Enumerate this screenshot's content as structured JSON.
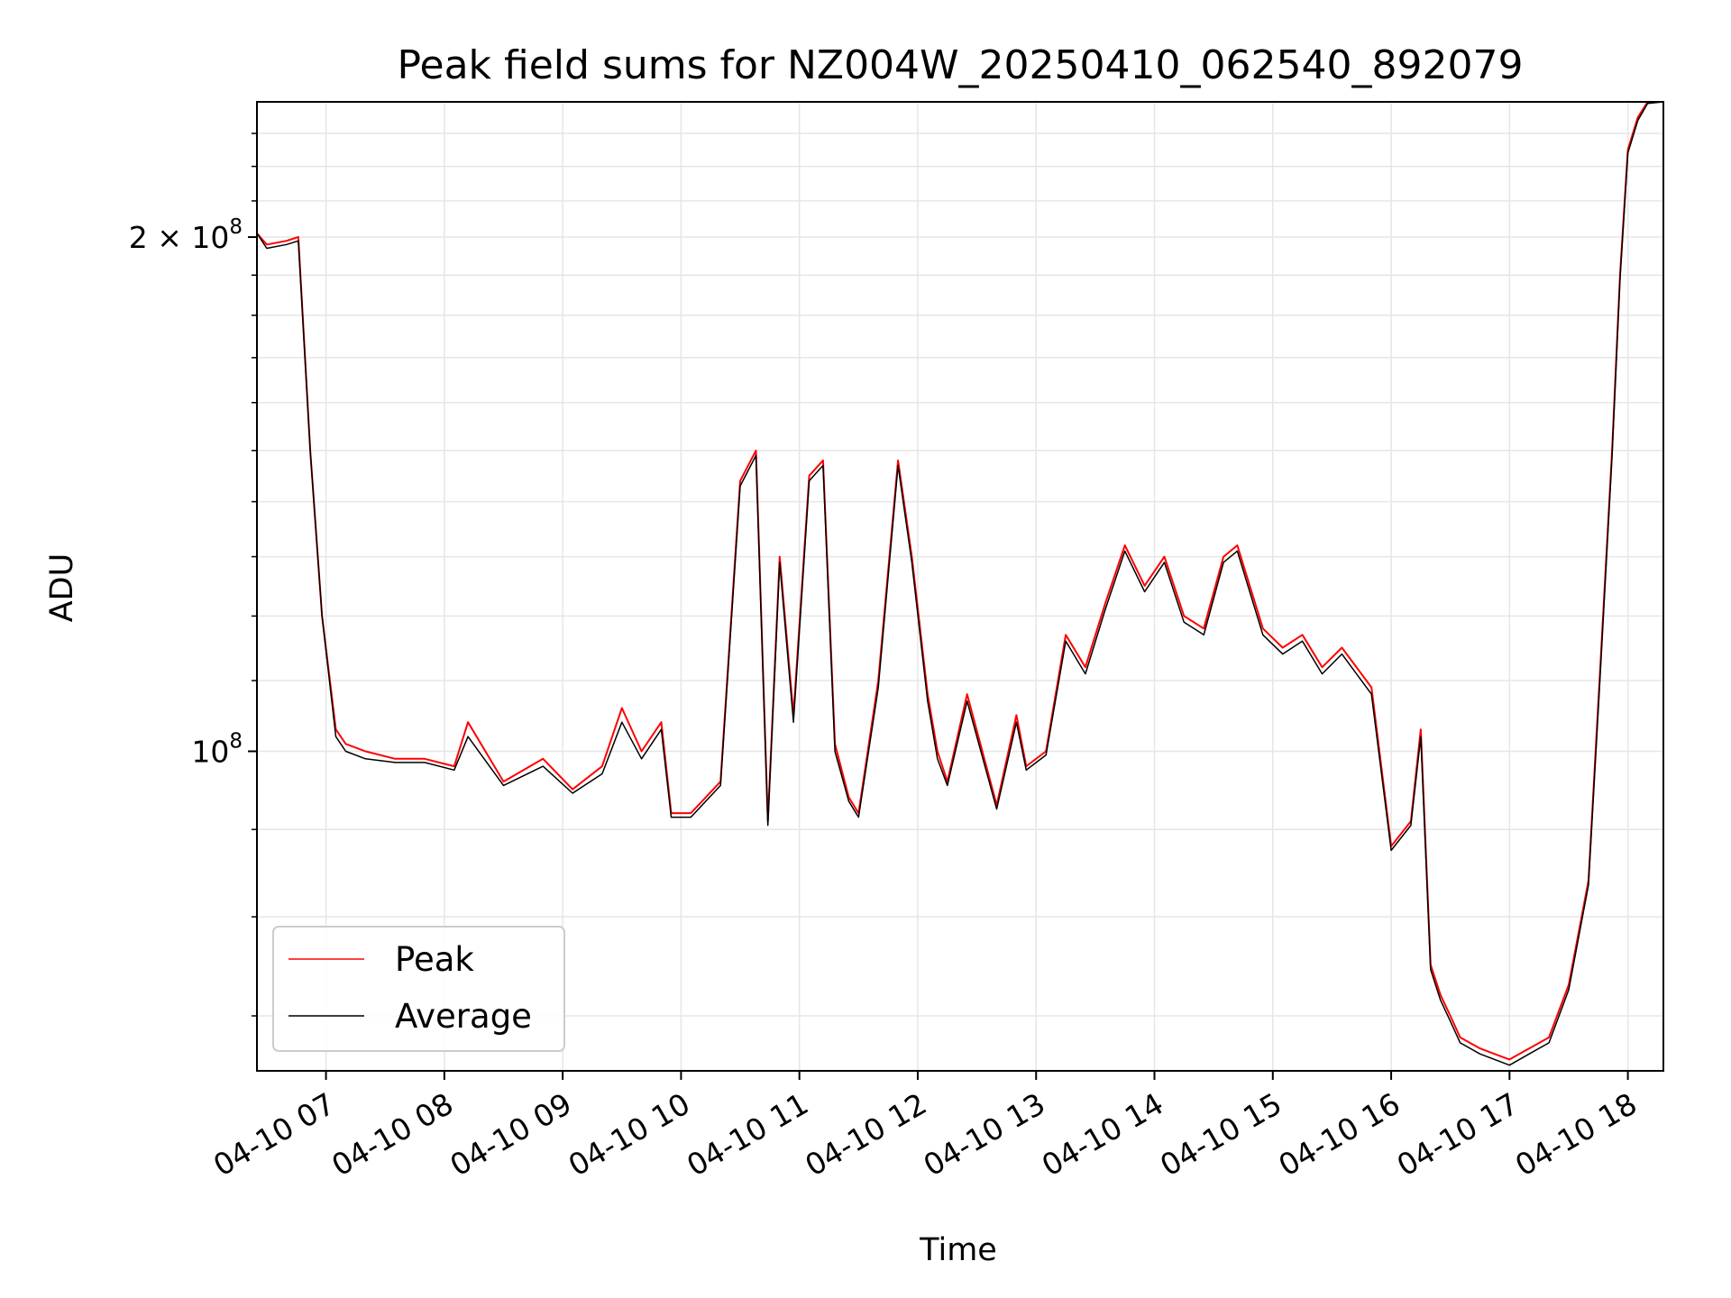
{
  "chart_data": {
    "type": "line",
    "title": "Peak field sums for NZ004W_20250410_062540_892079",
    "xlabel": "Time",
    "ylabel": "ADU",
    "y_scale": "log",
    "ylim": [
      65000000,
      240000000
    ],
    "xlim": [
      "2025-04-10 06:25",
      "2025-04-10 18:18"
    ],
    "grid": true,
    "legend": {
      "location": "lower-left"
    },
    "x_ticks": [
      "04-10 07",
      "04-10 08",
      "04-10 09",
      "04-10 10",
      "04-10 11",
      "04-10 12",
      "04-10 13",
      "04-10 14",
      "04-10 15",
      "04-10 16",
      "04-10 17",
      "04-10 18"
    ],
    "y_ticks_major": [
      {
        "value": 100000000,
        "base": "10",
        "exponent": "8"
      },
      {
        "value": 200000000,
        "mantissa": "2",
        "times": "×",
        "base": "10",
        "exponent": "8"
      }
    ],
    "x": [
      "2025-04-10 06:25",
      "2025-04-10 06:30",
      "2025-04-10 06:40",
      "2025-04-10 06:46",
      "2025-04-10 06:52",
      "2025-04-10 06:58",
      "2025-04-10 07:05",
      "2025-04-10 07:10",
      "2025-04-10 07:20",
      "2025-04-10 07:35",
      "2025-04-10 07:50",
      "2025-04-10 08:05",
      "2025-04-10 08:12",
      "2025-04-10 08:30",
      "2025-04-10 08:50",
      "2025-04-10 09:05",
      "2025-04-10 09:20",
      "2025-04-10 09:30",
      "2025-04-10 09:40",
      "2025-04-10 09:50",
      "2025-04-10 09:55",
      "2025-04-10 10:05",
      "2025-04-10 10:20",
      "2025-04-10 10:30",
      "2025-04-10 10:38",
      "2025-04-10 10:44",
      "2025-04-10 10:50",
      "2025-04-10 10:57",
      "2025-04-10 11:05",
      "2025-04-10 11:12",
      "2025-04-10 11:18",
      "2025-04-10 11:25",
      "2025-04-10 11:30",
      "2025-04-10 11:40",
      "2025-04-10 11:50",
      "2025-04-10 11:57",
      "2025-04-10 12:05",
      "2025-04-10 12:10",
      "2025-04-10 12:15",
      "2025-04-10 12:25",
      "2025-04-10 12:40",
      "2025-04-10 12:50",
      "2025-04-10 12:55",
      "2025-04-10 13:05",
      "2025-04-10 13:15",
      "2025-04-10 13:25",
      "2025-04-10 13:35",
      "2025-04-10 13:45",
      "2025-04-10 13:55",
      "2025-04-10 14:05",
      "2025-04-10 14:15",
      "2025-04-10 14:25",
      "2025-04-10 14:35",
      "2025-04-10 14:42",
      "2025-04-10 14:55",
      "2025-04-10 15:05",
      "2025-04-10 15:15",
      "2025-04-10 15:25",
      "2025-04-10 15:35",
      "2025-04-10 15:50",
      "2025-04-10 16:00",
      "2025-04-10 16:10",
      "2025-04-10 16:15",
      "2025-04-10 16:20",
      "2025-04-10 16:25",
      "2025-04-10 16:30",
      "2025-04-10 16:35",
      "2025-04-10 16:45",
      "2025-04-10 17:00",
      "2025-04-10 17:10",
      "2025-04-10 17:20",
      "2025-04-10 17:30",
      "2025-04-10 17:40",
      "2025-04-10 17:46",
      "2025-04-10 17:52",
      "2025-04-10 17:56",
      "2025-04-10 18:00",
      "2025-04-10 18:05",
      "2025-04-10 18:10",
      "2025-04-10 18:18"
    ],
    "series": [
      {
        "name": "Peak",
        "color": "#ff0000",
        "values": [
          201000000,
          198000000,
          199000000,
          200000000,
          150000000,
          120000000,
          103000000,
          101000000,
          100000000,
          99000000,
          99000000,
          98000000,
          104000000,
          96000000,
          99000000,
          95000000,
          98000000,
          106000000,
          100000000,
          104000000,
          92000000,
          92000000,
          96000000,
          144000000,
          150000000,
          91000000,
          130000000,
          105000000,
          145000000,
          148000000,
          101000000,
          94000000,
          92000000,
          110000000,
          148000000,
          130000000,
          108000000,
          100000000,
          96000000,
          108000000,
          93000000,
          105000000,
          98000000,
          100000000,
          117000000,
          112000000,
          122000000,
          132000000,
          125000000,
          130000000,
          120000000,
          118000000,
          130000000,
          132000000,
          118000000,
          115000000,
          117000000,
          112000000,
          115000000,
          109000000,
          88000000,
          91000000,
          103000000,
          75000000,
          72000000,
          70000000,
          68000000,
          67000000,
          66000000,
          67000000,
          68000000,
          73000000,
          84000000,
          112000000,
          150000000,
          190000000,
          225000000,
          235000000,
          240000000,
          240000000
        ]
      },
      {
        "name": "Average",
        "color": "#000000",
        "values": [
          201000000,
          197000000,
          198000000,
          199000000,
          150000000,
          120000000,
          102000000,
          100000000,
          99000000,
          98500000,
          98500000,
          97500000,
          102000000,
          95500000,
          98000000,
          94500000,
          97000000,
          104000000,
          99000000,
          103000000,
          91500000,
          91500000,
          95500000,
          143000000,
          149000000,
          90500000,
          129000000,
          104000000,
          144000000,
          147000000,
          100000000,
          93500000,
          91500000,
          109000000,
          147000000,
          129000000,
          107000000,
          99000000,
          95500000,
          107000000,
          92500000,
          104000000,
          97500000,
          99500000,
          116000000,
          111000000,
          121000000,
          131000000,
          124000000,
          129000000,
          119000000,
          117000000,
          129000000,
          131000000,
          117000000,
          114000000,
          116000000,
          111000000,
          114000000,
          108000000,
          87500000,
          90500000,
          102000000,
          74500000,
          71500000,
          69500000,
          67500000,
          66500000,
          65500000,
          66500000,
          67500000,
          72500000,
          83500000,
          111000000,
          149000000,
          189000000,
          224000000,
          234000000,
          239500000,
          240000000
        ]
      }
    ]
  }
}
